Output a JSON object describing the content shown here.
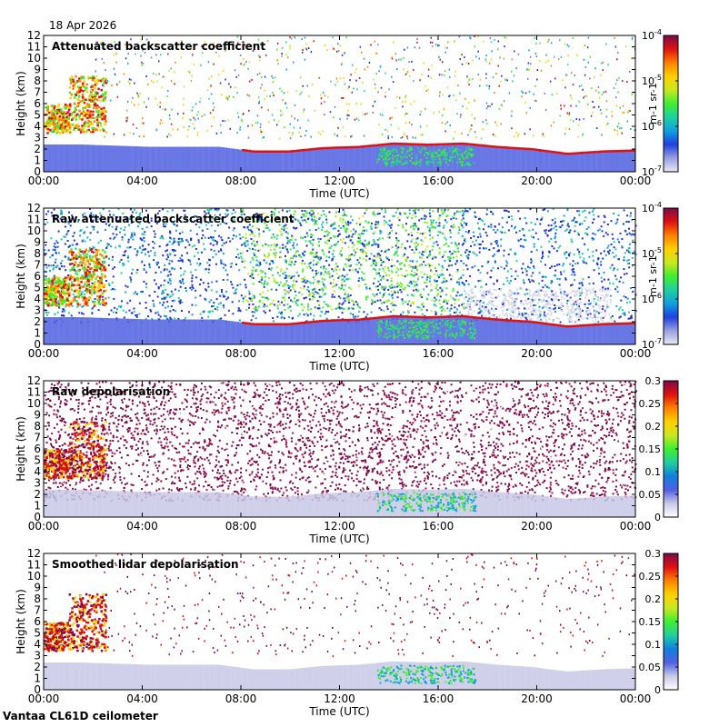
{
  "header": {
    "date": "18 Apr 2026"
  },
  "footer": {
    "site": "Vantaa CL61D ceilometer"
  },
  "colors": {
    "clear_air": "#d8d8e8",
    "noise_blue": "#2030d0",
    "boundary_red": "#e01010",
    "bright_green": "#40ee30",
    "frame": "#000000"
  },
  "chart_data": [
    {
      "type": "heatmap",
      "title": "Attenuated backscatter coefficient",
      "xlabel": "Time (UTC)",
      "ylabel": "Height (km)",
      "xticks": [
        "00:00",
        "04:00",
        "08:00",
        "12:00",
        "16:00",
        "20:00",
        "00:00"
      ],
      "yticks": [
        "0",
        "1",
        "2",
        "3",
        "4",
        "5",
        "6",
        "7",
        "8",
        "9",
        "10",
        "11",
        "12"
      ],
      "ylim": [
        0,
        12
      ],
      "colorbar": {
        "scale": "log",
        "ticks": [
          "10-7",
          "10-6",
          "10-5",
          "10-4"
        ],
        "label": "m-1 sr-1"
      },
      "features": {
        "boundary_layer_top_km": [
          2.4,
          2.4,
          2.3,
          2.2,
          2.2,
          2.2,
          1.8,
          1.8,
          2.1,
          2.2,
          2.5,
          2.4,
          2.5,
          2.2,
          2.0,
          1.6,
          1.8,
          1.9
        ],
        "early_cloud": {
          "time_h": [
            0,
            2.5
          ],
          "base_km": 3.5,
          "top_km": 8.5
        }
      }
    },
    {
      "type": "heatmap",
      "title": "Raw attenuated backscatter coefficient",
      "xlabel": "Time (UTC)",
      "ylabel": "Height (km)",
      "xticks": [
        "00:00",
        "04:00",
        "08:00",
        "12:00",
        "16:00",
        "20:00",
        "00:00"
      ],
      "yticks": [
        "0",
        "1",
        "2",
        "3",
        "4",
        "5",
        "6",
        "7",
        "8",
        "9",
        "10",
        "11",
        "12"
      ],
      "ylim": [
        0,
        12
      ],
      "colorbar": {
        "scale": "log",
        "ticks": [
          "10-7",
          "10-6",
          "10-5",
          "10-4"
        ],
        "label": "m-1 sr-1"
      }
    },
    {
      "type": "heatmap",
      "title": "Raw depolarisation",
      "xlabel": "Time (UTC)",
      "ylabel": "Height (km)",
      "xticks": [
        "00:00",
        "04:00",
        "08:00",
        "12:00",
        "16:00",
        "20:00",
        "00:00"
      ],
      "yticks": [
        "0",
        "1",
        "2",
        "3",
        "4",
        "5",
        "6",
        "7",
        "8",
        "9",
        "10",
        "11",
        "12"
      ],
      "ylim": [
        0,
        12
      ],
      "colorbar": {
        "scale": "linear",
        "ticks": [
          "0",
          "0.05",
          "0.1",
          "0.15",
          "0.2",
          "0.25",
          "0.3"
        ],
        "range": [
          0,
          0.3
        ]
      }
    },
    {
      "type": "heatmap",
      "title": "Smoothed lidar depolarisation",
      "xlabel": "Time (UTC)",
      "ylabel": "Height (km)",
      "xticks": [
        "00:00",
        "04:00",
        "08:00",
        "12:00",
        "16:00",
        "20:00",
        "00:00"
      ],
      "yticks": [
        "0",
        "1",
        "2",
        "3",
        "4",
        "5",
        "6",
        "7",
        "8",
        "9",
        "10",
        "11",
        "12"
      ],
      "ylim": [
        0,
        12
      ],
      "colorbar": {
        "scale": "linear",
        "ticks": [
          "0",
          "0.05",
          "0.1",
          "0.15",
          "0.2",
          "0.25",
          "0.3"
        ],
        "range": [
          0,
          0.3
        ]
      }
    }
  ]
}
